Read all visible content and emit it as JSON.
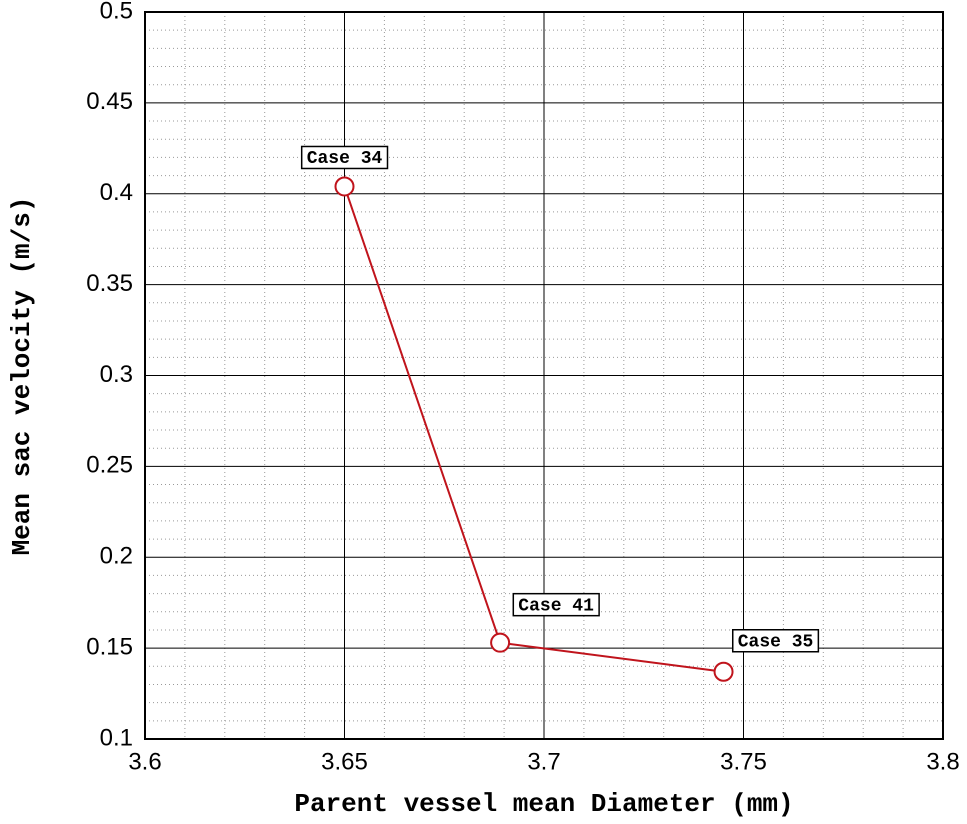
{
  "chart_data": {
    "type": "line",
    "xlabel": "Parent vessel mean Diameter (mm)",
    "ylabel": "Mean sac velocity (m/s)",
    "x": [
      3.65,
      3.689,
      3.745
    ],
    "values": [
      0.404,
      0.153,
      0.137
    ],
    "annotations": [
      "Case 34",
      "Case 41",
      "Case 35"
    ],
    "color": "#c0141c",
    "xlim": [
      3.6,
      3.8
    ],
    "xticks": [
      3.6,
      3.65,
      3.7,
      3.75,
      3.8
    ],
    "ylim": [
      0.1,
      0.5
    ],
    "yticks": [
      0.1,
      0.15,
      0.2,
      0.25,
      0.3,
      0.35,
      0.4,
      0.45,
      0.5
    ],
    "grid": true,
    "minor_grid": true
  }
}
